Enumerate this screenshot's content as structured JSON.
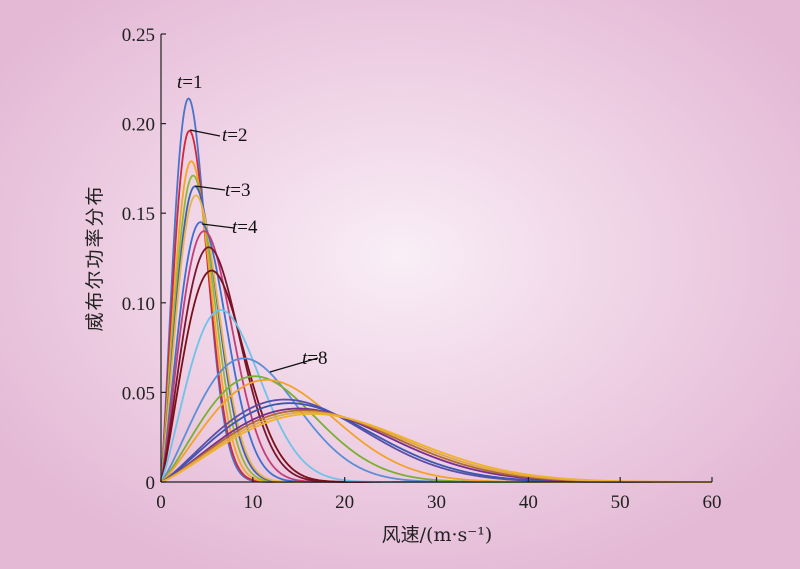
{
  "chart_data": {
    "type": "line",
    "xlabel": "风速/(m·s⁻¹)",
    "ylabel": "威布尔功率分布",
    "xlim": [
      0,
      60
    ],
    "ylim": [
      0,
      0.25
    ],
    "x_ticks": [
      "0",
      "10",
      "20",
      "30",
      "40",
      "50",
      "60"
    ],
    "y_ticks": [
      "0",
      "0.05",
      "0.10",
      "0.15",
      "0.20",
      "0.25"
    ],
    "grid": false,
    "legend": "none",
    "annotations": [
      {
        "text": "t=1",
        "var": "t",
        "rest": "=1",
        "x": 3.2,
        "y": 0.214
      },
      {
        "text": "t=2",
        "var": "t",
        "rest": "=2",
        "x": 3.5,
        "y": 0.196
      },
      {
        "text": "t=3",
        "var": "t",
        "rest": "=3",
        "x": 4.0,
        "y": 0.164
      },
      {
        "text": "t=4",
        "var": "t",
        "rest": "=4",
        "x": 4.5,
        "y": 0.143
      },
      {
        "text": "t=8",
        "var": "t",
        "rest": "=8",
        "x": 12.0,
        "y": 0.058
      }
    ],
    "series": [
      {
        "color": "#4a74c9",
        "k": 2.2,
        "peak_x": 3.0,
        "peak_y": 0.214
      },
      {
        "color": "#d0283c",
        "k": 2.2,
        "peak_x": 3.1,
        "peak_y": 0.196
      },
      {
        "color": "#f5a623",
        "k": 2.2,
        "peak_x": 3.3,
        "peak_y": 0.179
      },
      {
        "color": "#8fb83a",
        "k": 2.2,
        "peak_x": 3.5,
        "peak_y": 0.171
      },
      {
        "color": "#3a60b8",
        "k": 2.2,
        "peak_x": 3.7,
        "peak_y": 0.165
      },
      {
        "color": "#e8b44a",
        "k": 2.2,
        "peak_x": 3.8,
        "peak_y": 0.16
      },
      {
        "color": "#3f6fd0",
        "k": 2.2,
        "peak_x": 4.3,
        "peak_y": 0.145
      },
      {
        "color": "#c43e78",
        "k": 2.2,
        "peak_x": 4.7,
        "peak_y": 0.14
      },
      {
        "color": "#7a1630",
        "k": 2.2,
        "peak_x": 5.2,
        "peak_y": 0.131
      },
      {
        "color": "#7a1018",
        "k": 2.2,
        "peak_x": 5.5,
        "peak_y": 0.118
      },
      {
        "color": "#6fc3ea",
        "k": 2.2,
        "peak_x": 6.5,
        "peak_y": 0.096
      },
      {
        "color": "#5a8fd6",
        "k": 2.2,
        "peak_x": 9.0,
        "peak_y": 0.069
      },
      {
        "color": "#7ab030",
        "k": 2.2,
        "peak_x": 10.2,
        "peak_y": 0.059
      },
      {
        "color": "#f2a22a",
        "k": 2.2,
        "peak_x": 11.5,
        "peak_y": 0.057
      },
      {
        "color": "#5c4fa8",
        "k": 2.2,
        "peak_x": 13.5,
        "peak_y": 0.046
      },
      {
        "color": "#3a58b0",
        "k": 2.2,
        "peak_x": 14.0,
        "peak_y": 0.044
      },
      {
        "color": "#7a2e8e",
        "k": 2.2,
        "peak_x": 15.0,
        "peak_y": 0.041
      },
      {
        "color": "#b06a30",
        "k": 2.2,
        "peak_x": 15.5,
        "peak_y": 0.04
      },
      {
        "color": "#e0a840",
        "k": 2.2,
        "peak_x": 16.0,
        "peak_y": 0.039
      },
      {
        "color": "#f0b030",
        "k": 2.2,
        "peak_x": 16.5,
        "peak_y": 0.038
      }
    ]
  }
}
